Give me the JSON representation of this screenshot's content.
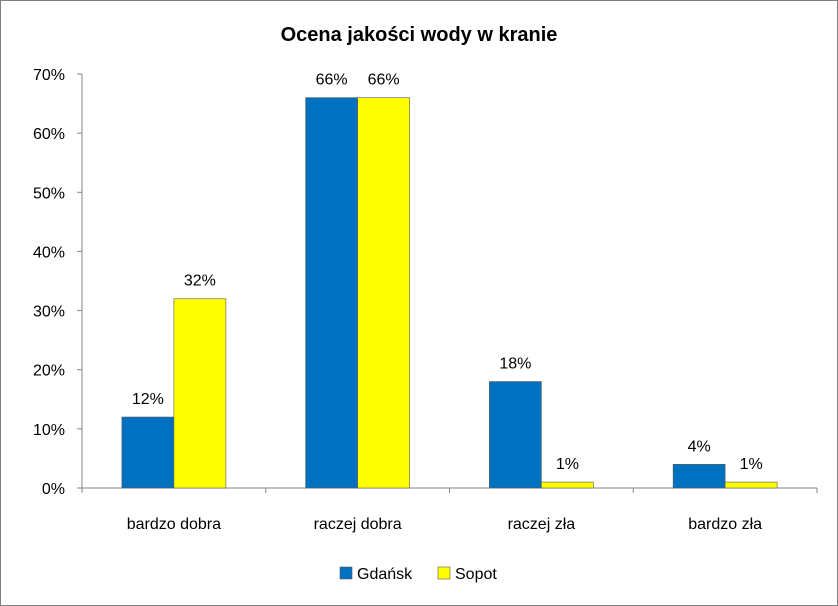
{
  "chart_data": {
    "type": "bar",
    "title": "Ocena jakości wody w kranie",
    "xlabel": "",
    "ylabel": "",
    "categories": [
      "bardzo dobra",
      "raczej dobra",
      "raczej zła",
      "bardzo zła"
    ],
    "series": [
      {
        "name": "Gdańsk",
        "color": "#0070c0",
        "values": [
          12,
          66,
          18,
          4
        ]
      },
      {
        "name": "Sopot",
        "color": "#ffff00",
        "values": [
          32,
          66,
          1,
          1
        ]
      }
    ],
    "value_labels": [
      [
        "12%",
        "66%",
        "18%",
        "4%"
      ],
      [
        "32%",
        "66%",
        "1%",
        "1%"
      ]
    ],
    "ylim": [
      0,
      70
    ],
    "yticks": [
      "0%",
      "10%",
      "20%",
      "30%",
      "40%",
      "50%",
      "60%",
      "70%"
    ],
    "grid": false,
    "legend_position": "bottom"
  }
}
